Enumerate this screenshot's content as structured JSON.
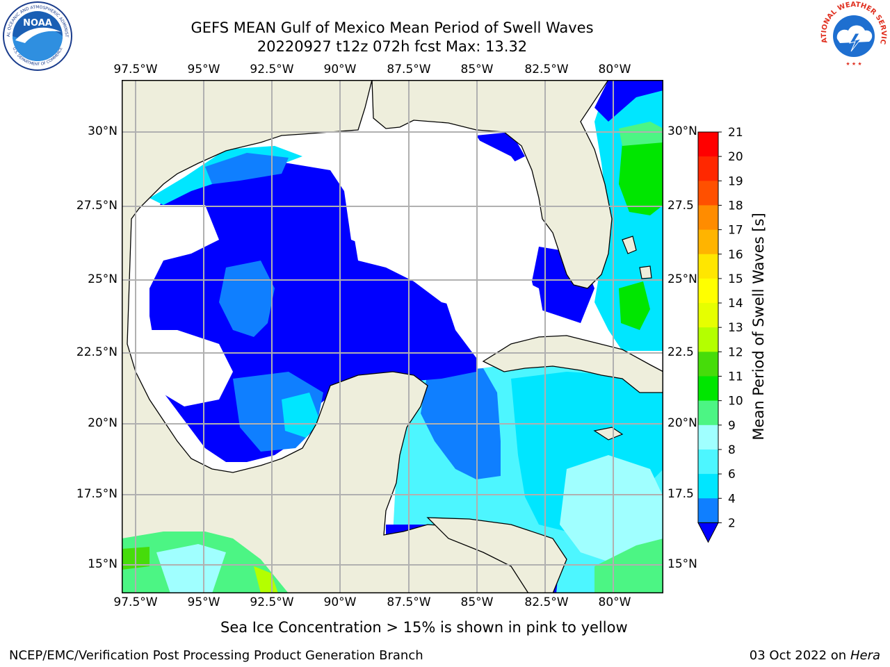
{
  "header": {
    "title": "GEFS MEAN Gulf of Mexico Mean Period of Swell Waves",
    "subtitle": "20220927 t12z 072h fcst   Max: 13.32"
  },
  "logos": {
    "left": {
      "name": "NOAA",
      "ring_text": "NATIONAL OCEANIC AND ATMOSPHERIC ADMINISTRATION",
      "bottom_text": "U.S. DEPARTMENT OF COMMERCE"
    },
    "right": {
      "ring_text": "NATIONAL WEATHER SERVICE"
    }
  },
  "map": {
    "lon_labels": [
      "97.5°W",
      "95°W",
      "92.5°W",
      "90°W",
      "87.5°W",
      "85°W",
      "82.5°W",
      "80°W"
    ],
    "lat_labels_left": [
      "30°N",
      "27.5°N",
      "25°N",
      "22.5°N",
      "20°N",
      "17.5°N",
      "15°N"
    ],
    "lat_labels_right": [
      "30°N",
      "27.5",
      "25°N",
      "22.5",
      "20°N",
      "17.5",
      "15°N"
    ],
    "colors": {
      "land": "#eeeedc",
      "ocean_void": "#ffffff",
      "grid": "#b0b0b0",
      "coast": "#000000"
    }
  },
  "colorbar": {
    "label": "Mean Period of Swell Waves [s]",
    "ticks": [
      "2",
      "4",
      "6",
      "8",
      "9",
      "10",
      "11",
      "12",
      "13",
      "14",
      "15",
      "16",
      "17",
      "18",
      "19",
      "20",
      "21"
    ],
    "colors": [
      "#0000ff",
      "#0f7fff",
      "#00e6ff",
      "#4df6ff",
      "#a0ffff",
      "#4cf584",
      "#00e600",
      "#46dc0a",
      "#b4ff00",
      "#e6ff00",
      "#ffff00",
      "#ffe600",
      "#ffb400",
      "#ff8c00",
      "#ff5000",
      "#ff2800",
      "#ff0000"
    ]
  },
  "note": "Sea Ice Concentration > 15% is shown in pink to yellow",
  "footer": {
    "left": "NCEP/EMC/Verification Post Processing Product Generation Branch",
    "date": "03 Oct 2022 on ",
    "machine": "Hera"
  }
}
